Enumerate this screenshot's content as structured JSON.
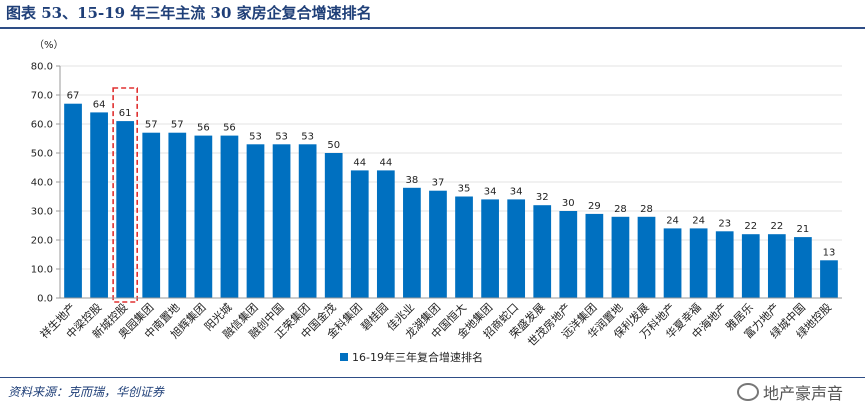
{
  "title": "图表 53、15-19 年三年主流 30 家房企复合增速排名",
  "source": "资料来源：克而瑞，华创证券",
  "watermark": "地产豪声音",
  "colors": {
    "bar": "#0070c0",
    "highlight": "#e03030",
    "title": "#1f3f78"
  },
  "chart_data": {
    "type": "bar",
    "title": "15-19 年三年主流 30 家房企复合增速排名",
    "ylabel": "（%）",
    "ylim": [
      0,
      80
    ],
    "yticks": [
      "0.0",
      "10.0",
      "20.0",
      "30.0",
      "40.0",
      "50.0",
      "60.0",
      "70.0",
      "80.0"
    ],
    "legend": "16-19年三年复合增速排名",
    "highlight_category": "新城控股",
    "categories": [
      "祥生地产",
      "中梁控股",
      "新城控股",
      "奥园集团",
      "中南置地",
      "旭辉集团",
      "阳光城",
      "融信集团",
      "融创中国",
      "正荣集团",
      "中国金茂",
      "金科集团",
      "碧桂园",
      "佳兆业",
      "龙湖集团",
      "中国恒大",
      "金地集团",
      "招商蛇口",
      "荣盛发展",
      "世茂房地产",
      "远洋集团",
      "华润置地",
      "保利发展",
      "万科地产",
      "华夏幸福",
      "中海地产",
      "雅居乐",
      "富力地产",
      "绿城中国",
      "绿地控股"
    ],
    "values": [
      67,
      64,
      61,
      57,
      57,
      56,
      56,
      53,
      53,
      53,
      50,
      44,
      44,
      38,
      37,
      35,
      34,
      34,
      32,
      30,
      29,
      28,
      28,
      24,
      24,
      23,
      22,
      22,
      21,
      13
    ]
  }
}
